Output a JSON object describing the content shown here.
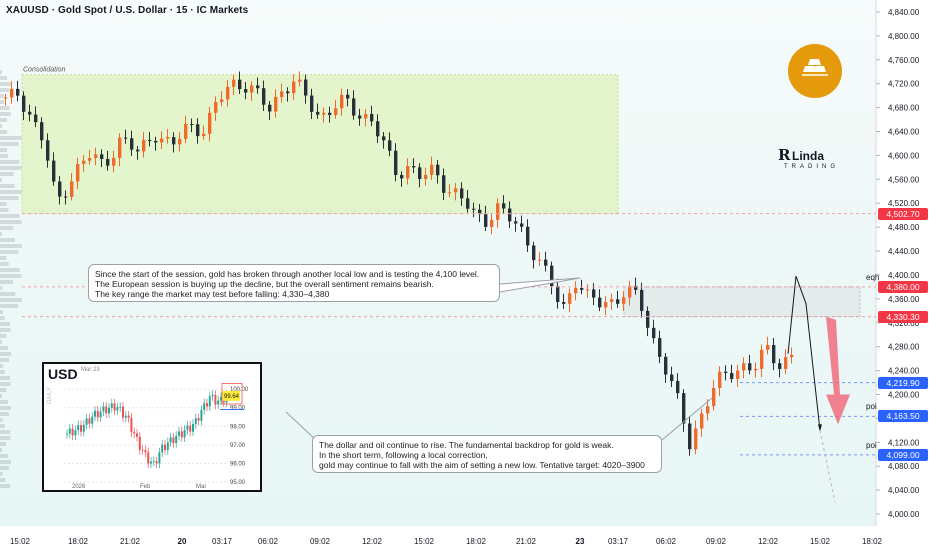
{
  "header": {
    "title": "XAUUSD · Gold Spot / U.S. Dollar · 15 · IC Markets"
  },
  "chart_data": {
    "type": "candlestick",
    "symbol": "XAUUSD",
    "timeframe": "15",
    "ylim": [
      3980,
      4860
    ],
    "y_ticks": [
      4000,
      4040,
      4080,
      4120,
      4160,
      4200,
      4240,
      4280,
      4320,
      4360,
      4400,
      4440,
      4480,
      4520,
      4560,
      4600,
      4640,
      4680,
      4720,
      4760,
      4800,
      4840
    ],
    "y_tick_labels": [
      "4,000.00",
      "4,040.00",
      "4,080.00",
      "4,120.00",
      "4,160.00",
      "4,200.00",
      "4,240.00",
      "4,280.00",
      "4,320.00",
      "4,360.00",
      "4,400.00",
      "4,440.00",
      "4,480.00",
      "4,520.00",
      "4,560.00",
      "4,600.00",
      "4,640.00",
      "4,680.00",
      "4,720.00",
      "4,760.00",
      "4,800.00",
      "4,840.00"
    ],
    "x_tick_labels": [
      "15:02",
      "18:02",
      "21:02",
      "20",
      "03:17",
      "06:02",
      "09:02",
      "12:02",
      "15:02",
      "18:02",
      "21:02",
      "23",
      "03:17",
      "06:02",
      "09:02",
      "12:02",
      "15:02",
      "18:02"
    ],
    "close_path": [
      [
        0,
        4690
      ],
      [
        6,
        4705
      ],
      [
        12,
        4665
      ],
      [
        18,
        4620
      ],
      [
        24,
        4520
      ],
      [
        32,
        4570
      ],
      [
        40,
        4600
      ],
      [
        46,
        4585
      ],
      [
        54,
        4625
      ],
      [
        62,
        4605
      ],
      [
        70,
        4640
      ],
      [
        78,
        4610
      ],
      [
        86,
        4655
      ],
      [
        94,
        4640
      ],
      [
        100,
        4690
      ],
      [
        106,
        4725
      ],
      [
        112,
        4718
      ],
      [
        118,
        4700
      ],
      [
        124,
        4680
      ],
      [
        130,
        4710
      ],
      [
        136,
        4720
      ],
      [
        142,
        4695
      ],
      [
        148,
        4665
      ],
      [
        154,
        4678
      ],
      [
        160,
        4690
      ],
      [
        166,
        4672
      ],
      [
        172,
        4660
      ],
      [
        178,
        4615
      ],
      [
        184,
        4572
      ],
      [
        190,
        4582
      ],
      [
        196,
        4560
      ],
      [
        202,
        4575
      ],
      [
        208,
        4545
      ],
      [
        214,
        4530
      ],
      [
        220,
        4500
      ],
      [
        226,
        4495
      ],
      [
        232,
        4512
      ],
      [
        238,
        4490
      ],
      [
        244,
        4470
      ],
      [
        250,
        4430
      ],
      [
        256,
        4390
      ],
      [
        262,
        4340
      ],
      [
        268,
        4395
      ],
      [
        274,
        4360
      ],
      [
        280,
        4352
      ],
      [
        286,
        4358
      ],
      [
        292,
        4372
      ],
      [
        298,
        4360
      ],
      [
        304,
        4300
      ],
      [
        310,
        4250
      ],
      [
        316,
        4190
      ],
      [
        322,
        4120
      ],
      [
        328,
        4170
      ],
      [
        334,
        4215
      ],
      [
        340,
        4235
      ],
      [
        346,
        4250
      ],
      [
        352,
        4240
      ],
      [
        358,
        4275
      ],
      [
        364,
        4255
      ],
      [
        370,
        4262
      ]
    ],
    "price_labels": [
      {
        "value": 4502.7,
        "text": "4,502.70",
        "color": "#f23645",
        "tag": ""
      },
      {
        "value": 4380.0,
        "text": "4,380.00",
        "color": "#f23645",
        "tag": "eqh"
      },
      {
        "value": 4330.3,
        "text": "4,330.30",
        "color": "#f23645",
        "tag": ""
      },
      {
        "value": 4219.9,
        "text": "4,219.90",
        "color": "#2962ff",
        "tag": ""
      },
      {
        "value": 4163.5,
        "text": "4,163.50",
        "color": "#2962ff",
        "tag": "poi"
      },
      {
        "value": 4099.0,
        "text": "4,099.00",
        "color": "#2962ff",
        "tag": "poi"
      }
    ],
    "zones": [
      {
        "name": "Consolidation",
        "from": 4502.7,
        "to": 4735
      },
      {
        "name": "",
        "from": 4330.3,
        "to": 4380.0
      }
    ]
  },
  "annotations": {
    "consolidation": "Consolidation",
    "note1": {
      "line1": "Since the start of the session, gold has broken through another local low and is testing the 4,100 level.",
      "line2": "The European session is buying up the decline, but the overall sentiment remains bearish.",
      "line3": "The key range the market may test before falling: 4,330–4,380"
    },
    "note2": {
      "line1": "The dollar and oil continue to rise. The fundamental backdrop for gold is weak.",
      "line2": "In the short term, following a local correction,",
      "line3": "gold may continue to fall with the aim of setting a new low. Tentative target: 4020–3900"
    }
  },
  "inset": {
    "symbol": "USD",
    "date_label": "Mar 23",
    "timeframe": "DAILY",
    "y_labels": [
      "100.00",
      "99.64",
      "99.00",
      "98.00",
      "97.00",
      "96.00",
      "95.00"
    ],
    "x_labels": [
      "2026",
      "Feb",
      "Mar"
    ],
    "current": "99.64",
    "close_path": [
      [
        0,
        97.6
      ],
      [
        10,
        97.9
      ],
      [
        20,
        98.6
      ],
      [
        28,
        98.9
      ],
      [
        36,
        99.1
      ],
      [
        44,
        98.5
      ],
      [
        52,
        97.2
      ],
      [
        58,
        96.4
      ],
      [
        64,
        95.9
      ],
      [
        70,
        96.8
      ],
      [
        78,
        97.3
      ],
      [
        86,
        97.7
      ],
      [
        94,
        98.1
      ],
      [
        100,
        98.9
      ],
      [
        106,
        99.6
      ],
      [
        112,
        99.3
      ],
      [
        118,
        99.64
      ]
    ]
  },
  "branding": {
    "mark": "R",
    "name": "Linda",
    "sub": "TRADING"
  }
}
